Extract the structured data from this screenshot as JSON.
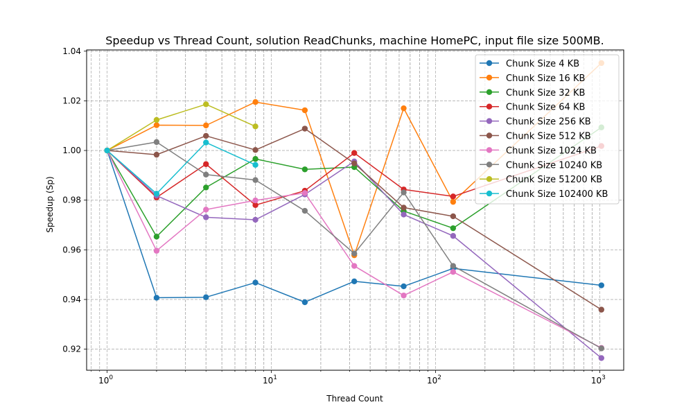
{
  "chart_data": {
    "type": "line",
    "title": "Speedup vs Thread Count, solution ReadChunks, machine HomePC, input file size 500MB.",
    "xlabel": "Thread Count",
    "ylabel": "Speedup (Sp)",
    "xscale": "log",
    "xlim": [
      0.75,
      1400
    ],
    "ylim": [
      0.9115,
      1.0405
    ],
    "x_ticks": [
      {
        "value": 1,
        "base": "10",
        "exp": "0"
      },
      {
        "value": 10,
        "base": "10",
        "exp": "1"
      },
      {
        "value": 100,
        "base": "10",
        "exp": "2"
      },
      {
        "value": 1000,
        "base": "10",
        "exp": "3"
      }
    ],
    "y_ticks": [
      "0.92",
      "0.94",
      "0.96",
      "0.98",
      "1.00",
      "1.02",
      "1.04"
    ],
    "grid": "major and minor, dashed",
    "legend_position": "top-right",
    "series": [
      {
        "name": "Chunk Size 4 KB",
        "color": "#1f77b4",
        "x": [
          1,
          2,
          4,
          8,
          16,
          32,
          64,
          128,
          1024
        ],
        "y": [
          1.0,
          0.9407,
          0.9409,
          0.9468,
          0.9389,
          0.9473,
          0.9453,
          0.9525,
          0.9457
        ]
      },
      {
        "name": "Chunk Size 16 KB",
        "color": "#ff7f0e",
        "x": [
          1,
          2,
          4,
          8,
          16,
          32,
          64,
          128,
          1024
        ],
        "y": [
          1.0,
          1.0102,
          1.0101,
          1.0195,
          1.0162,
          0.9578,
          1.017,
          0.9793,
          1.0352
        ]
      },
      {
        "name": "Chunk Size 32 KB",
        "color": "#2ca02c",
        "x": [
          1,
          2,
          4,
          8,
          16,
          32,
          64,
          128,
          1024
        ],
        "y": [
          1.0,
          0.9653,
          0.9851,
          0.9966,
          0.9924,
          0.9933,
          0.9756,
          0.9687,
          1.0093
        ]
      },
      {
        "name": "Chunk Size 64 KB",
        "color": "#d62728",
        "x": [
          1,
          2,
          4,
          8,
          16,
          32,
          64,
          128,
          1024
        ],
        "y": [
          1.0,
          0.9811,
          0.9945,
          0.978,
          0.9838,
          0.999,
          0.9843,
          0.9815,
          1.0018
        ]
      },
      {
        "name": "Chunk Size 256 KB",
        "color": "#9467bd",
        "x": [
          1,
          2,
          4,
          8,
          16,
          32,
          64,
          128,
          1024
        ],
        "y": [
          1.0,
          0.9818,
          0.9731,
          0.9721,
          0.9823,
          0.9956,
          0.9742,
          0.9656,
          0.9164
        ]
      },
      {
        "name": "Chunk Size 512 KB",
        "color": "#8c564b",
        "x": [
          1,
          2,
          4,
          8,
          16,
          32,
          64,
          128,
          1024
        ],
        "y": [
          1.0,
          0.9983,
          1.0059,
          1.0002,
          1.0088,
          0.9948,
          0.977,
          0.9735,
          0.9359
        ]
      },
      {
        "name": "Chunk Size 1024 KB",
        "color": "#e377c2",
        "x": [
          1,
          2,
          4,
          8,
          16,
          32,
          64,
          128,
          1024
        ],
        "y": [
          1.0,
          0.9596,
          0.9762,
          0.9799,
          0.9829,
          0.9535,
          0.9416,
          0.9511,
          0.9205
        ]
      },
      {
        "name": "Chunk Size 10240 KB",
        "color": "#7f7f7f",
        "x": [
          1,
          2,
          4,
          8,
          16,
          32,
          64,
          128,
          1024
        ],
        "y": [
          1.0,
          1.0034,
          0.9903,
          0.9881,
          0.9757,
          0.9585,
          0.9831,
          0.9535,
          0.9203
        ]
      },
      {
        "name": "Chunk Size 51200 KB",
        "color": "#bcbd22",
        "x": [
          1,
          2,
          4,
          8
        ],
        "y": [
          1.0,
          1.0123,
          1.0186,
          1.0097
        ]
      },
      {
        "name": "Chunk Size 102400 KB",
        "color": "#17becf",
        "x": [
          1,
          2,
          4,
          8
        ],
        "y": [
          1.0,
          0.9826,
          1.0032,
          0.9942
        ]
      }
    ]
  }
}
